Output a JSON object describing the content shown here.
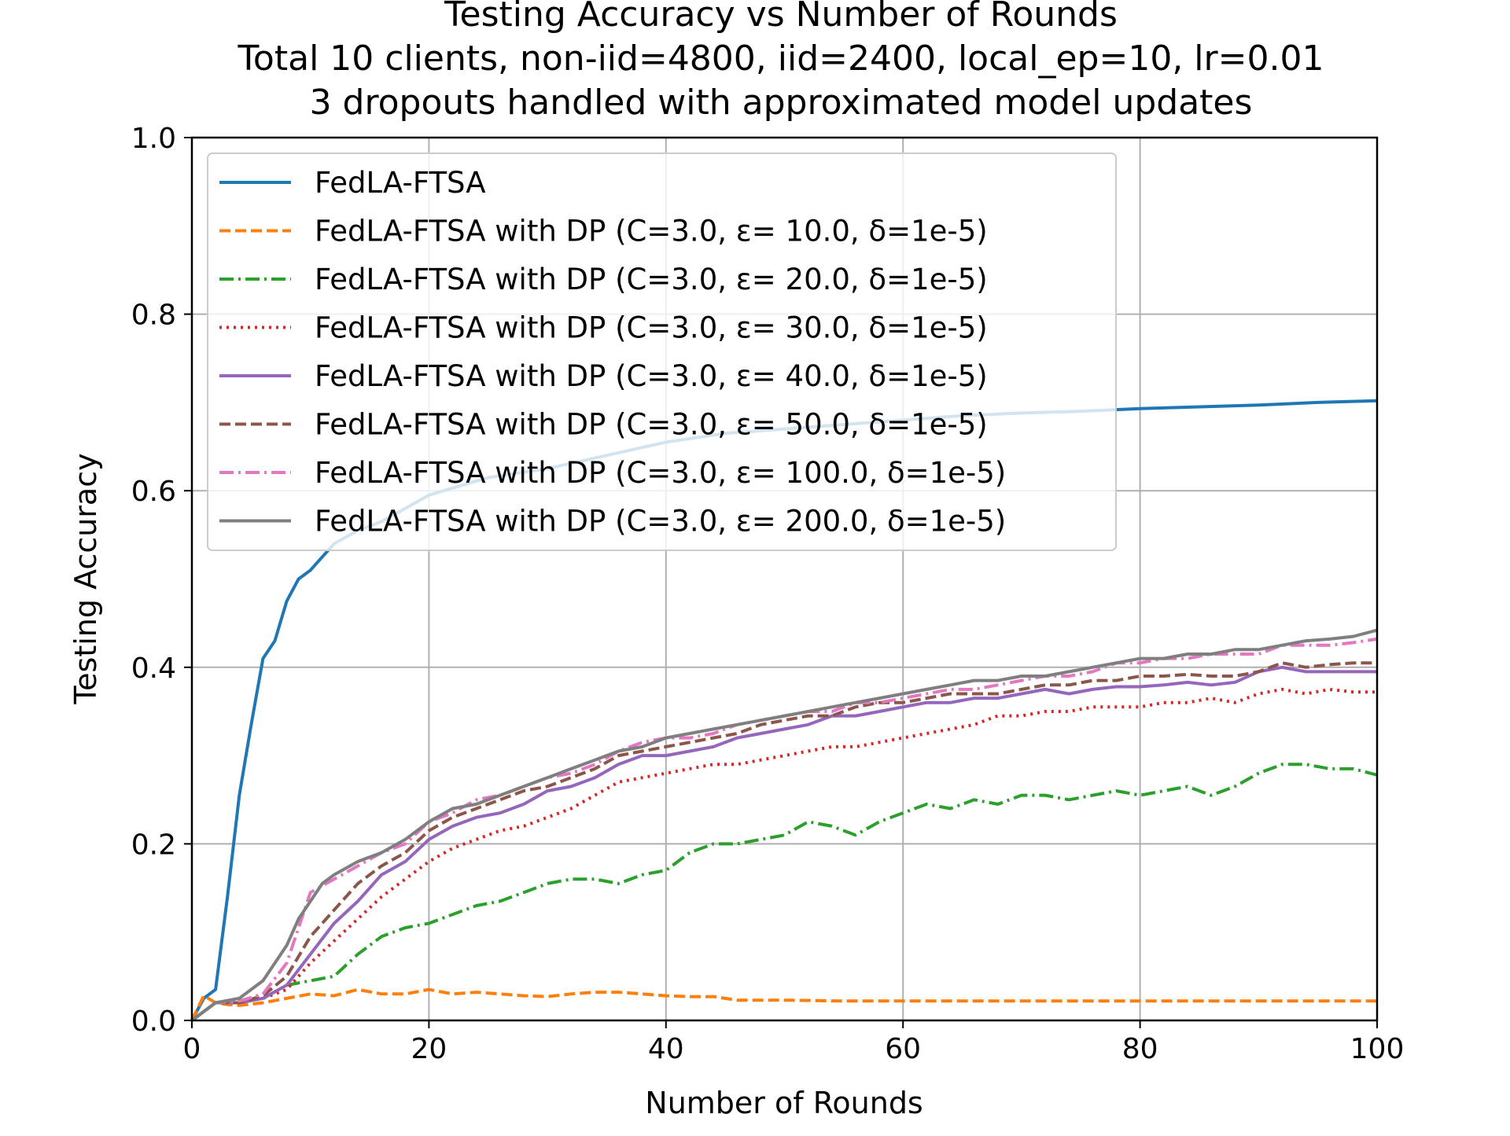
{
  "chart_data": {
    "type": "line",
    "title_lines": [
      "Testing Accuracy vs Number of Rounds",
      "Total 10 clients, non-iid=4800, iid=2400, local_ep=10, lr=0.01",
      "3 dropouts handled with approximated model updates"
    ],
    "xlabel": "Number of Rounds",
    "ylabel": "Testing Accuracy",
    "xlim": [
      0,
      100
    ],
    "ylim": [
      0.0,
      1.0
    ],
    "xticks": [
      0,
      20,
      40,
      60,
      80,
      100
    ],
    "xtick_labels": [
      "0",
      "20",
      "40",
      "60",
      "80",
      "100"
    ],
    "yticks": [
      0.0,
      0.2,
      0.4,
      0.6,
      0.8,
      1.0
    ],
    "ytick_labels": [
      "0.0",
      "0.2",
      "0.4",
      "0.6",
      "0.8",
      "1.0"
    ],
    "grid": true,
    "legend_location": "upper-left",
    "series": [
      {
        "name": "FedLA-FTSA",
        "color": "#1f77b4",
        "dash": "solid",
        "x": [
          0,
          1,
          2,
          3,
          4,
          5,
          6,
          7,
          8,
          9,
          10,
          12,
          14,
          16,
          18,
          20,
          25,
          30,
          35,
          40,
          45,
          50,
          55,
          60,
          65,
          70,
          75,
          80,
          85,
          90,
          95,
          100
        ],
        "y": [
          0.0,
          0.025,
          0.035,
          0.14,
          0.255,
          0.335,
          0.41,
          0.43,
          0.475,
          0.5,
          0.51,
          0.54,
          0.555,
          0.565,
          0.58,
          0.595,
          0.615,
          0.625,
          0.64,
          0.655,
          0.665,
          0.67,
          0.675,
          0.68,
          0.685,
          0.688,
          0.69,
          0.693,
          0.695,
          0.697,
          0.7,
          0.702
        ]
      },
      {
        "name": "FedLA-FTSA with DP (C=3.0, ε= 10.0, δ=1e-5)",
        "color": "#ff7f0e",
        "dash": "dashed",
        "x": [
          0,
          1,
          2,
          3,
          4,
          6,
          8,
          10,
          12,
          14,
          16,
          18,
          20,
          22,
          24,
          26,
          28,
          30,
          32,
          34,
          36,
          38,
          40,
          42,
          44,
          46,
          50,
          55,
          60,
          70,
          80,
          90,
          100
        ],
        "y": [
          0.0,
          0.028,
          0.02,
          0.018,
          0.017,
          0.02,
          0.025,
          0.03,
          0.028,
          0.035,
          0.03,
          0.03,
          0.035,
          0.03,
          0.032,
          0.03,
          0.028,
          0.027,
          0.03,
          0.032,
          0.032,
          0.03,
          0.028,
          0.027,
          0.027,
          0.023,
          0.023,
          0.022,
          0.022,
          0.022,
          0.022,
          0.022,
          0.022
        ]
      },
      {
        "name": "FedLA-FTSA with DP (C=3.0, ε= 20.0, δ=1e-5)",
        "color": "#2ca02c",
        "dash": "dashdot",
        "x": [
          0,
          2,
          4,
          6,
          8,
          10,
          12,
          14,
          16,
          18,
          20,
          22,
          24,
          26,
          28,
          30,
          32,
          34,
          36,
          38,
          40,
          42,
          44,
          46,
          48,
          50,
          52,
          54,
          56,
          58,
          60,
          62,
          64,
          66,
          68,
          70,
          72,
          74,
          76,
          78,
          80,
          82,
          84,
          86,
          88,
          90,
          92,
          94,
          96,
          98,
          100
        ],
        "y": [
          0.0,
          0.02,
          0.02,
          0.025,
          0.04,
          0.045,
          0.05,
          0.075,
          0.095,
          0.105,
          0.11,
          0.12,
          0.13,
          0.135,
          0.145,
          0.155,
          0.16,
          0.16,
          0.155,
          0.165,
          0.17,
          0.19,
          0.2,
          0.2,
          0.205,
          0.21,
          0.225,
          0.22,
          0.21,
          0.225,
          0.235,
          0.245,
          0.24,
          0.25,
          0.245,
          0.255,
          0.255,
          0.25,
          0.255,
          0.26,
          0.255,
          0.26,
          0.265,
          0.255,
          0.265,
          0.28,
          0.29,
          0.29,
          0.285,
          0.285,
          0.278
        ]
      },
      {
        "name": "FedLA-FTSA with DP (C=3.0, ε= 30.0, δ=1e-5)",
        "color": "#d62728",
        "dash": "dotted",
        "x": [
          0,
          2,
          4,
          6,
          8,
          10,
          12,
          14,
          16,
          18,
          20,
          22,
          24,
          26,
          28,
          30,
          32,
          34,
          36,
          38,
          40,
          42,
          44,
          46,
          48,
          50,
          52,
          54,
          56,
          58,
          60,
          62,
          64,
          66,
          68,
          70,
          72,
          74,
          76,
          78,
          80,
          82,
          84,
          86,
          88,
          90,
          92,
          94,
          96,
          98,
          100
        ],
        "y": [
          0.0,
          0.02,
          0.02,
          0.025,
          0.035,
          0.065,
          0.09,
          0.115,
          0.14,
          0.16,
          0.18,
          0.195,
          0.205,
          0.215,
          0.22,
          0.23,
          0.24,
          0.255,
          0.27,
          0.275,
          0.28,
          0.285,
          0.29,
          0.29,
          0.295,
          0.3,
          0.305,
          0.31,
          0.31,
          0.315,
          0.32,
          0.325,
          0.33,
          0.335,
          0.345,
          0.345,
          0.35,
          0.35,
          0.355,
          0.355,
          0.355,
          0.36,
          0.36,
          0.365,
          0.36,
          0.37,
          0.375,
          0.37,
          0.375,
          0.372,
          0.372
        ]
      },
      {
        "name": "FedLA-FTSA with DP (C=3.0, ε= 40.0, δ=1e-5)",
        "color": "#9467bd",
        "dash": "solid",
        "x": [
          0,
          2,
          4,
          6,
          8,
          10,
          12,
          14,
          16,
          18,
          20,
          22,
          24,
          26,
          28,
          30,
          32,
          34,
          36,
          38,
          40,
          42,
          44,
          46,
          48,
          50,
          52,
          54,
          56,
          58,
          60,
          62,
          64,
          66,
          68,
          70,
          72,
          74,
          76,
          78,
          80,
          82,
          84,
          86,
          88,
          90,
          92,
          94,
          96,
          98,
          100
        ],
        "y": [
          0.0,
          0.02,
          0.02,
          0.025,
          0.04,
          0.075,
          0.11,
          0.135,
          0.165,
          0.18,
          0.205,
          0.22,
          0.23,
          0.235,
          0.245,
          0.26,
          0.265,
          0.275,
          0.29,
          0.3,
          0.3,
          0.305,
          0.31,
          0.32,
          0.325,
          0.33,
          0.335,
          0.345,
          0.345,
          0.35,
          0.355,
          0.36,
          0.36,
          0.365,
          0.365,
          0.37,
          0.375,
          0.37,
          0.375,
          0.378,
          0.378,
          0.38,
          0.383,
          0.38,
          0.383,
          0.395,
          0.4,
          0.395,
          0.395,
          0.395,
          0.395
        ]
      },
      {
        "name": "FedLA-FTSA with DP (C=3.0, ε= 50.0, δ=1e-5)",
        "color": "#8c564b",
        "dash": "dashed",
        "x": [
          0,
          2,
          4,
          6,
          8,
          10,
          12,
          14,
          16,
          18,
          20,
          22,
          24,
          26,
          28,
          30,
          32,
          34,
          36,
          38,
          40,
          42,
          44,
          46,
          48,
          50,
          52,
          54,
          56,
          58,
          60,
          62,
          64,
          66,
          68,
          70,
          72,
          74,
          76,
          78,
          80,
          82,
          84,
          86,
          88,
          90,
          92,
          94,
          96,
          98,
          100
        ],
        "y": [
          0.0,
          0.02,
          0.02,
          0.028,
          0.05,
          0.095,
          0.125,
          0.155,
          0.175,
          0.19,
          0.215,
          0.23,
          0.24,
          0.25,
          0.26,
          0.265,
          0.275,
          0.285,
          0.3,
          0.305,
          0.31,
          0.315,
          0.32,
          0.325,
          0.335,
          0.34,
          0.345,
          0.345,
          0.355,
          0.36,
          0.36,
          0.365,
          0.37,
          0.37,
          0.37,
          0.375,
          0.38,
          0.38,
          0.385,
          0.385,
          0.39,
          0.39,
          0.392,
          0.39,
          0.39,
          0.395,
          0.405,
          0.4,
          0.403,
          0.405,
          0.405
        ]
      },
      {
        "name": "FedLA-FTSA with DP (C=3.0, ε= 100.0, δ=1e-5)",
        "color": "#e377c2",
        "dash": "dashdot",
        "x": [
          0,
          2,
          4,
          6,
          8,
          10,
          12,
          14,
          16,
          18,
          20,
          22,
          24,
          26,
          28,
          30,
          32,
          34,
          36,
          38,
          40,
          42,
          44,
          46,
          48,
          50,
          52,
          54,
          56,
          58,
          60,
          62,
          64,
          66,
          68,
          70,
          72,
          74,
          76,
          78,
          80,
          82,
          84,
          86,
          88,
          90,
          92,
          94,
          96,
          98,
          100
        ],
        "y": [
          0.0,
          0.02,
          0.022,
          0.03,
          0.065,
          0.145,
          0.16,
          0.175,
          0.19,
          0.2,
          0.225,
          0.235,
          0.25,
          0.255,
          0.265,
          0.275,
          0.28,
          0.29,
          0.305,
          0.315,
          0.32,
          0.32,
          0.325,
          0.335,
          0.34,
          0.345,
          0.35,
          0.35,
          0.36,
          0.36,
          0.365,
          0.37,
          0.375,
          0.375,
          0.38,
          0.385,
          0.39,
          0.39,
          0.395,
          0.405,
          0.405,
          0.41,
          0.41,
          0.415,
          0.415,
          0.415,
          0.425,
          0.425,
          0.425,
          0.428,
          0.432
        ]
      },
      {
        "name": "FedLA-FTSA with DP (C=3.0, ε= 200.0, δ=1e-5)",
        "color": "#7f7f7f",
        "dash": "solid",
        "x": [
          0,
          2,
          4,
          6,
          7,
          8,
          9,
          10,
          11,
          12,
          14,
          16,
          18,
          20,
          22,
          24,
          26,
          28,
          30,
          32,
          34,
          36,
          38,
          40,
          42,
          44,
          46,
          48,
          50,
          52,
          54,
          56,
          58,
          60,
          62,
          64,
          66,
          68,
          70,
          72,
          74,
          76,
          78,
          80,
          82,
          84,
          86,
          88,
          90,
          92,
          94,
          96,
          98,
          100
        ],
        "y": [
          0.0,
          0.02,
          0.025,
          0.045,
          0.065,
          0.085,
          0.115,
          0.135,
          0.155,
          0.165,
          0.18,
          0.19,
          0.205,
          0.225,
          0.24,
          0.245,
          0.255,
          0.265,
          0.275,
          0.285,
          0.295,
          0.305,
          0.31,
          0.32,
          0.325,
          0.33,
          0.335,
          0.34,
          0.345,
          0.35,
          0.355,
          0.36,
          0.365,
          0.37,
          0.375,
          0.38,
          0.385,
          0.385,
          0.39,
          0.39,
          0.395,
          0.4,
          0.405,
          0.41,
          0.41,
          0.415,
          0.415,
          0.42,
          0.42,
          0.425,
          0.43,
          0.432,
          0.435,
          0.442
        ]
      }
    ]
  }
}
